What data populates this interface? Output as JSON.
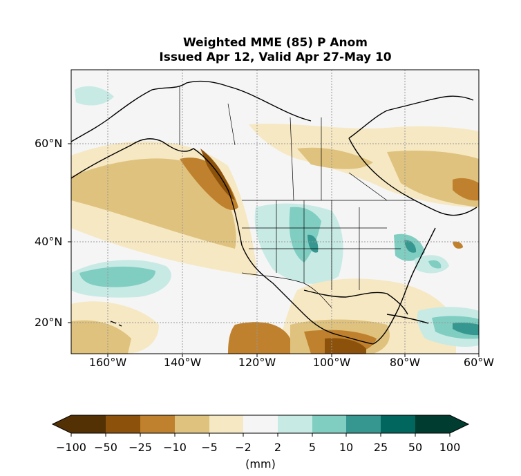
{
  "title": {
    "line1": "Weighted MME (85) P Anom",
    "line2": "Issued Apr 12, Valid Apr 27-May 10"
  },
  "map": {
    "lat_ticks": [
      "60°N",
      "40°N",
      "20°N"
    ],
    "lon_ticks": [
      "160°W",
      "140°W",
      "120°W",
      "100°W",
      "80°W",
      "60°W"
    ],
    "gridlines": true
  },
  "colorbar": {
    "labels": [
      "−100",
      "−50",
      "−25",
      "−10",
      "−5",
      "−2",
      "2",
      "5",
      "10",
      "25",
      "50",
      "100"
    ],
    "colors": [
      "#543005",
      "#8c510a",
      "#bf812d",
      "#dfc27d",
      "#f6e8c3",
      "#f5f5f5",
      "#c7eae5",
      "#80cdc1",
      "#35978f",
      "#01665e",
      "#003c30"
    ],
    "unit": "(mm)"
  }
}
